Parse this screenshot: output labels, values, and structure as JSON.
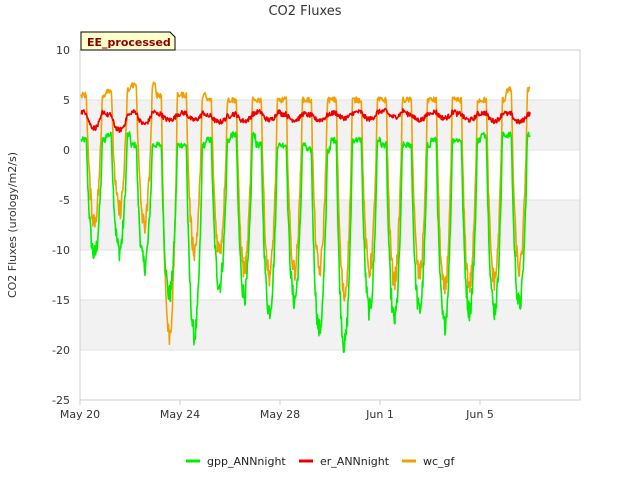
{
  "chart_data": {
    "type": "line",
    "title": "CO2 Fluxes",
    "xlabel": "",
    "ylabel": "CO2 Fluxes (urology/m2/s)",
    "ylim": [
      -25,
      10
    ],
    "xlim_days": [
      0,
      20
    ],
    "y_ticks": [
      10,
      5,
      0,
      -5,
      -10,
      -15,
      -20,
      -25
    ],
    "x_ticks": [
      {
        "label": "May 20",
        "day": 0
      },
      {
        "label": "May 24",
        "day": 4
      },
      {
        "label": "May 28",
        "day": 8
      },
      {
        "label": "Jun 1",
        "day": 12
      },
      {
        "label": "Jun 5",
        "day": 16
      }
    ],
    "badge": "EE_processed",
    "grid": true,
    "legend_position": "bottom-center",
    "series": [
      {
        "name": "gpp_ANNnight",
        "color": "#00ee00",
        "daily_max": [
          1.0,
          1.5,
          0.5,
          0.5,
          0.5,
          1.0,
          1.5,
          0.5,
          0.5,
          0.0,
          1.0,
          1.0,
          0.5,
          0.5,
          1.0,
          1.0,
          1.5,
          1.5
        ],
        "daily_min": [
          -10.5,
          -10.0,
          -11.5,
          -14.5,
          -18.5,
          -13.5,
          -14.5,
          -16.0,
          -15.0,
          -18.0,
          -19.5,
          -16.0,
          -17.0,
          -16.0,
          -17.5,
          -16.0,
          -16.0,
          -15.5
        ]
      },
      {
        "name": "er_ANNnight",
        "color": "#ee0000",
        "daily_max": [
          3.8,
          3.5,
          3.8,
          3.6,
          3.7,
          3.4,
          3.6,
          3.8,
          3.6,
          3.5,
          3.7,
          3.8,
          3.9,
          3.6,
          3.8,
          3.6,
          3.7,
          3.6
        ],
        "daily_min": [
          2.2,
          2.0,
          2.6,
          3.0,
          3.0,
          2.8,
          2.9,
          3.0,
          3.0,
          3.0,
          3.2,
          3.1,
          3.3,
          3.0,
          3.2,
          3.0,
          2.9,
          2.8
        ]
      },
      {
        "name": "wc_gf",
        "color": "#f0a000",
        "daily_max": [
          5.5,
          6.0,
          6.5,
          5.5,
          5.5,
          5.0,
          5.0,
          5.0,
          5.0,
          5.0,
          5.0,
          5.0,
          5.0,
          5.0,
          5.0,
          5.0,
          5.0,
          6.0
        ],
        "daily_min": [
          -7.0,
          -6.0,
          -7.5,
          -18.5,
          -10.0,
          -10.0,
          -12.0,
          -12.5,
          -12.0,
          -12.0,
          -14.5,
          -12.0,
          -13.0,
          -12.5,
          -14.0,
          -13.5,
          -13.0,
          -12.0
        ]
      }
    ]
  }
}
